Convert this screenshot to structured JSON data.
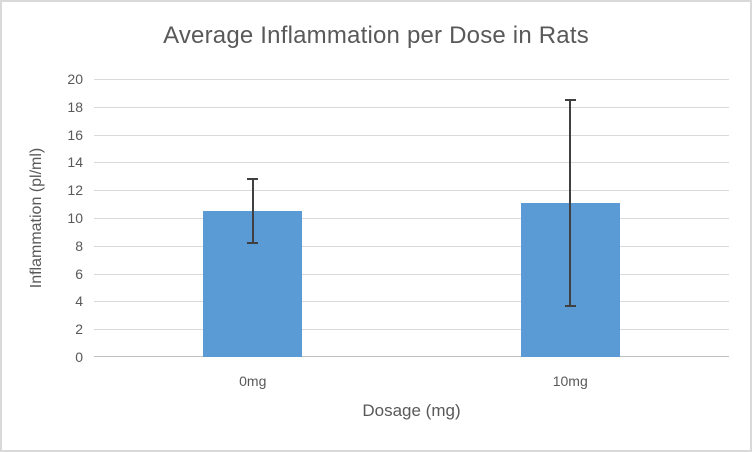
{
  "chart_data": {
    "type": "bar",
    "title": "Average Inflammation per Dose in Rats",
    "categories": [
      "0mg",
      "10mg"
    ],
    "values": [
      10.5,
      11.1
    ],
    "error_bars": {
      "low": [
        8.2,
        3.7
      ],
      "high": [
        12.8,
        18.5
      ]
    },
    "xlabel": "Dosage (mg)",
    "ylabel": "Inflammation (pl/ml)",
    "ylim": [
      0,
      20
    ],
    "ytick_step": 2,
    "grid": true,
    "legend": false,
    "colors": {
      "bar": "#5B9BD5",
      "gridline": "#D9D9D9",
      "axis_line": "#BFBFBF",
      "text": "#595959",
      "error_bar": "#404040",
      "background": "#FFFFFF",
      "border": "#D9D9D9"
    }
  }
}
